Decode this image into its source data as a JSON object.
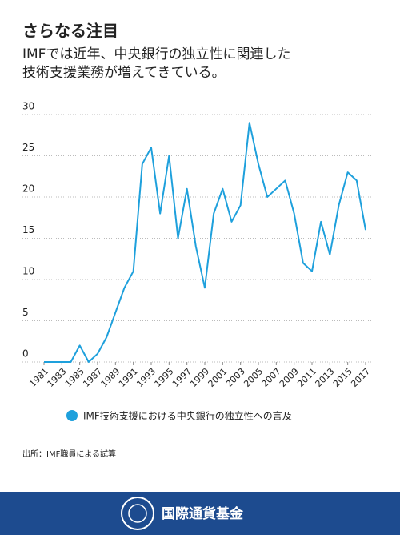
{
  "chart_data": {
    "type": "line",
    "title": "さらなる注目",
    "subtitle": [
      "IMFでは近年、中央銀行の独立性に関連した",
      "技術支援業務が増えてきている。"
    ],
    "x": [
      1981,
      1982,
      1983,
      1984,
      1985,
      1986,
      1987,
      1988,
      1989,
      1990,
      1991,
      1992,
      1993,
      1994,
      1995,
      1996,
      1997,
      1998,
      1999,
      2000,
      2001,
      2002,
      2003,
      2004,
      2005,
      2006,
      2007,
      2008,
      2009,
      2010,
      2011,
      2012,
      2013,
      2014,
      2015,
      2016,
      2017
    ],
    "series": [
      {
        "name": "IMF技術支援における中央銀行の独立性への言及",
        "color": "#1ea0dc",
        "values": [
          0,
          0,
          0,
          0,
          2,
          0,
          1,
          3,
          6,
          9,
          11,
          24,
          26,
          18,
          25,
          15,
          21,
          14,
          9,
          18,
          21,
          17,
          19,
          29,
          24,
          20,
          21,
          22,
          18,
          12,
          11,
          17,
          13,
          19,
          23,
          22,
          16
        ]
      }
    ],
    "xlim": [
      1981,
      2017
    ],
    "xticks": [
      1981,
      1983,
      1985,
      1987,
      1989,
      1991,
      1993,
      1995,
      1997,
      1999,
      2001,
      2003,
      2005,
      2007,
      2009,
      2011,
      2013,
      2015,
      2017
    ],
    "ylim": [
      0,
      30
    ],
    "yticks": [
      0,
      5,
      10,
      15,
      20,
      25,
      30
    ],
    "grid": true
  },
  "source": "出所：IMF職員による試算",
  "footer": "国際通貨基金"
}
